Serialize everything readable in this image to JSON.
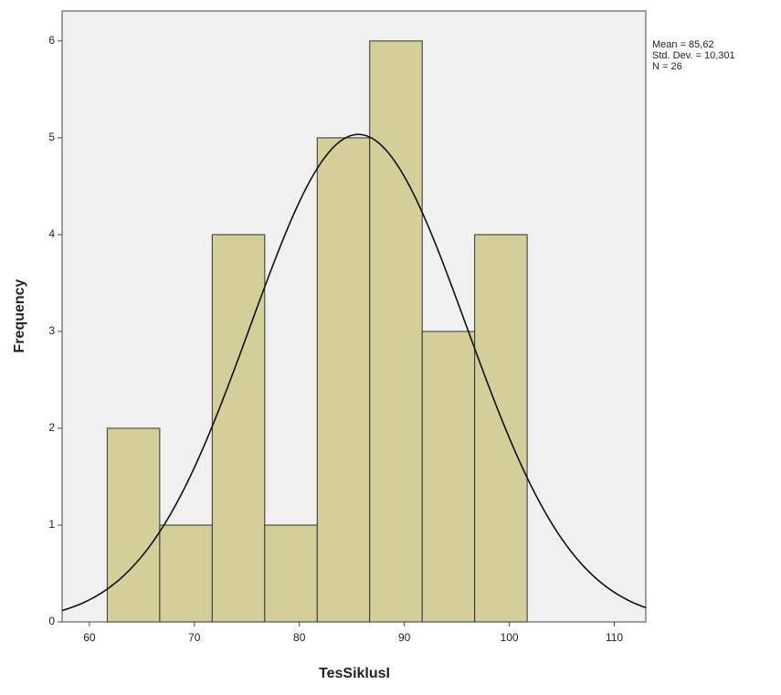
{
  "chart_data": {
    "type": "histogram",
    "x_label": "TesSiklusI",
    "y_label": "Frequency",
    "bins": [
      61.7,
      66.7,
      71.7,
      76.7,
      81.7,
      86.7,
      91.7,
      96.7,
      101.7
    ],
    "values": [
      2,
      1,
      4,
      1,
      5,
      6,
      3,
      4
    ],
    "color": "#d4ce98",
    "xlim": [
      57.4,
      113
    ],
    "xticks": [
      60,
      70,
      80,
      90,
      100,
      110
    ],
    "ylim": [
      0,
      6.31
    ],
    "yticks": [
      0,
      1,
      2,
      3,
      4,
      5,
      6
    ],
    "stats": {
      "mean": {
        "value": 85.62,
        "label": "Mean = 85,62"
      },
      "std_dev": {
        "value": 10.301,
        "label": "Std. Dev. = 10,301"
      },
      "n": {
        "value": 26,
        "label": "N = 26"
      }
    }
  }
}
